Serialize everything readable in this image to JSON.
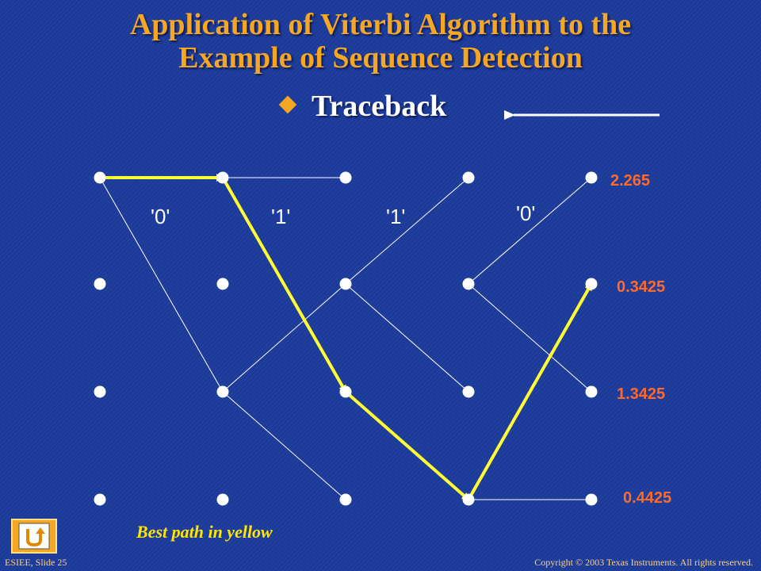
{
  "slide": {
    "title_line1": "Application of Viterbi Algorithm to the",
    "title_line2": "Example of Sequence Detection",
    "subtitle": "Traceback",
    "caption": "Best path in yellow",
    "footer_left": "ESIEE, Slide 25",
    "footer_right": "Copyright © 2003 Texas Instruments. All rights reserved."
  },
  "trellis": {
    "bit_labels": [
      "'0'",
      "'1'",
      "'1'",
      "'0'"
    ],
    "final_metrics": [
      "2.265",
      "0.3425",
      "1.3425",
      "0.4425"
    ],
    "best_path_states": [
      0,
      0,
      2,
      3,
      1
    ],
    "colors": {
      "path": "#ffff33",
      "branch": "#ffffff",
      "metric": "#ff6a2a",
      "title": "#f5a623"
    },
    "icons": {
      "home": "u-turn-icon",
      "bullet": "diamond-bullet-icon",
      "arrow": "left-arrow-icon"
    }
  }
}
